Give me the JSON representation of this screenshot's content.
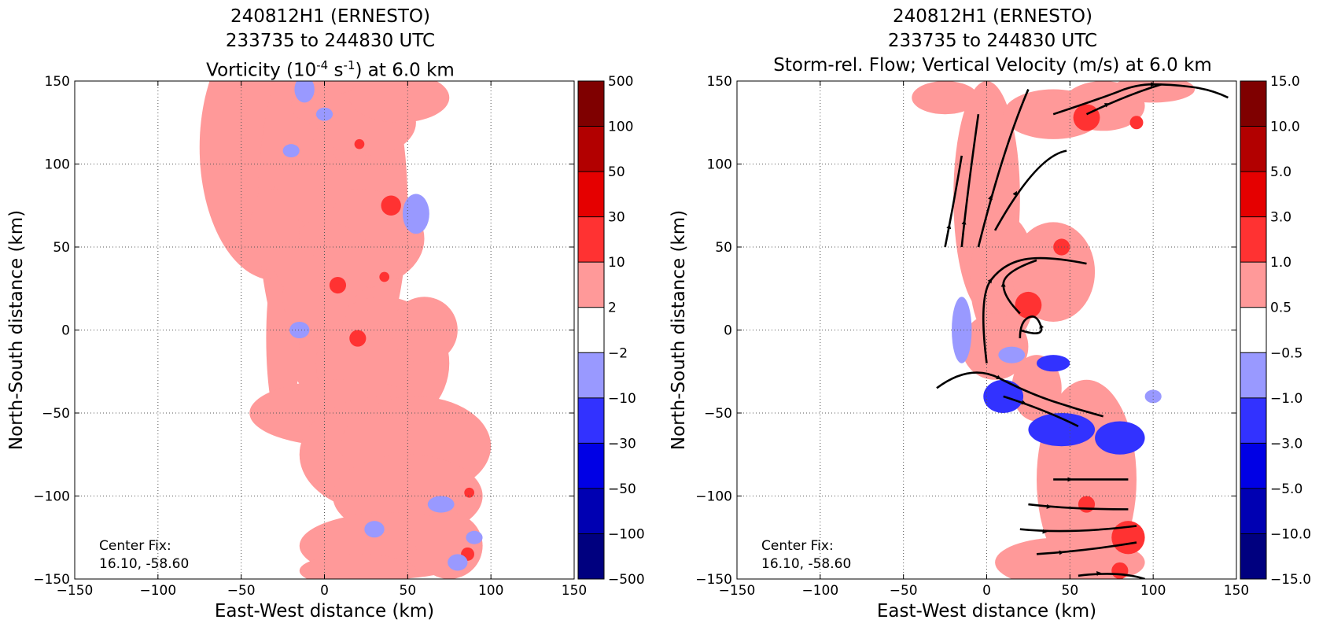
{
  "panels": [
    {
      "title_line1": "240812H1 (ERNESTO)",
      "title_line2": "233735 to 244830 UTC",
      "title_line3_pre": "Vorticity (10",
      "title_line3_sup1": "-4",
      "title_line3_mid": " s",
      "title_line3_sup2": "-1",
      "title_line3_post": ") at 6.0 km",
      "xlabel": "East-West distance (km)",
      "ylabel": "North-South distance (km)",
      "center_fix_label": "Center Fix:",
      "center_fix_value": "16.10, -58.60",
      "colorbar_ticks": [
        "−500",
        "−100",
        "−50",
        "−30",
        "−10",
        "−2",
        "2",
        "10",
        "30",
        "50",
        "100",
        "500"
      ]
    },
    {
      "title_line1": "240812H1 (ERNESTO)",
      "title_line2": "233735 to 244830 UTC",
      "title_line3": "Storm-rel. Flow; Vertical Velocity (m/s) at 6.0 km",
      "xlabel": "East-West distance (km)",
      "ylabel": "North-South distance (km)",
      "center_fix_label": "Center Fix:",
      "center_fix_value": "16.10, -58.60",
      "colorbar_ticks": [
        "−15.0",
        "−10.0",
        "−5.0",
        "−3.0",
        "−1.0",
        "−0.5",
        "0.5",
        "1.0",
        "3.0",
        "5.0",
        "10.0",
        "15.0"
      ]
    }
  ],
  "colorbar_colors": [
    "#00007f",
    "#0000b2",
    "#0000e5",
    "#3232ff",
    "#9999ff",
    "#ffffff",
    "#ff9999",
    "#ff3232",
    "#e50000",
    "#b20000",
    "#7f0000"
  ],
  "chart_data": [
    {
      "type": "heatmap",
      "variable": "vorticity",
      "x_ticks": [
        -150,
        -100,
        -50,
        0,
        50,
        100,
        150
      ],
      "y_ticks": [
        -150,
        -100,
        -50,
        0,
        50,
        100,
        150
      ],
      "xlim": [
        -150,
        150
      ],
      "ylim": [
        -150,
        150
      ],
      "grid": true,
      "levels": [
        -500,
        -100,
        -50,
        -30,
        -10,
        -2,
        2,
        10,
        30,
        50,
        100,
        500
      ],
      "center_fix": [
        16.1,
        -58.6
      ],
      "positive_patches": [
        [
          -30,
          110,
          45,
          80
        ],
        [
          5,
          75,
          45,
          120
        ],
        [
          20,
          55,
          40,
          30
        ],
        [
          -25,
          -5,
          10,
          55
        ],
        [
          35,
          -20,
          40,
          40
        ],
        [
          10,
          -50,
          55,
          20
        ],
        [
          35,
          -75,
          50,
          35
        ],
        [
          55,
          -70,
          45,
          30
        ],
        [
          50,
          -100,
          45,
          25
        ],
        [
          40,
          -130,
          55,
          20
        ],
        [
          20,
          -145,
          35,
          10
        ],
        [
          15,
          135,
          35,
          15
        ],
        [
          -10,
          90,
          20,
          25
        ],
        [
          25,
          125,
          30,
          20
        ],
        [
          0,
          40,
          30,
          25
        ],
        [
          60,
          0,
          20,
          20
        ],
        [
          -5,
          20,
          20,
          25
        ],
        [
          75,
          -130,
          20,
          20
        ],
        [
          45,
          140,
          30,
          15
        ],
        [
          -30,
          60,
          15,
          25
        ]
      ],
      "moderate_patches": [
        [
          40,
          75,
          6
        ],
        [
          8,
          27,
          5
        ],
        [
          20,
          -5,
          5
        ],
        [
          36,
          32,
          3
        ],
        [
          86,
          -135,
          4
        ],
        [
          87,
          -98,
          3
        ],
        [
          21,
          112,
          3
        ]
      ],
      "negative_patches": [
        [
          55,
          70,
          8,
          12
        ],
        [
          -12,
          145,
          6,
          8
        ],
        [
          0,
          130,
          5,
          4
        ],
        [
          30,
          -120,
          6,
          5
        ],
        [
          70,
          -105,
          8,
          5
        ],
        [
          80,
          -140,
          6,
          5
        ],
        [
          -15,
          0,
          6,
          5
        ],
        [
          -20,
          108,
          5,
          4
        ],
        [
          90,
          -125,
          5,
          4
        ]
      ]
    },
    {
      "type": "heatmap",
      "variable": "vertical velocity with storm-relative streamlines",
      "x_ticks": [
        -150,
        -100,
        -50,
        0,
        50,
        100,
        150
      ],
      "y_ticks": [
        -150,
        -100,
        -50,
        0,
        50,
        100,
        150
      ],
      "xlim": [
        -150,
        150
      ],
      "ylim": [
        -150,
        150
      ],
      "grid": true,
      "levels": [
        -15.0,
        -10.0,
        -5.0,
        -3.0,
        -1.0,
        -0.5,
        0.5,
        1.0,
        3.0,
        5.0,
        10.0,
        15.0
      ],
      "center_fix": [
        16.1,
        -58.6
      ],
      "positive_patches": [
        [
          0,
          80,
          20,
          70
        ],
        [
          40,
          130,
          30,
          15
        ],
        [
          70,
          135,
          25,
          15
        ],
        [
          10,
          30,
          20,
          40
        ],
        [
          40,
          35,
          25,
          30
        ],
        [
          60,
          -90,
          30,
          60
        ],
        [
          45,
          -140,
          40,
          15
        ],
        [
          5,
          -10,
          20,
          20
        ],
        [
          30,
          -35,
          15,
          20
        ],
        [
          -25,
          140,
          20,
          10
        ],
        [
          100,
          145,
          25,
          8
        ],
        [
          75,
          -140,
          20,
          10
        ]
      ],
      "moderate_patches": [
        [
          60,
          128,
          8
        ],
        [
          25,
          15,
          8
        ],
        [
          45,
          50,
          5
        ],
        [
          85,
          -125,
          10
        ],
        [
          60,
          -105,
          5
        ],
        [
          80,
          -145,
          5
        ],
        [
          90,
          125,
          4
        ]
      ],
      "negative_patches": [
        [
          -15,
          0,
          6,
          20
        ],
        [
          10,
          -40,
          12,
          10
        ],
        [
          45,
          -60,
          20,
          10
        ],
        [
          80,
          -65,
          15,
          10
        ],
        [
          40,
          -20,
          10,
          5
        ],
        [
          15,
          -15,
          8,
          5
        ],
        [
          100,
          -40,
          5,
          4
        ]
      ],
      "streamlines": [
        [
          [
            -25,
            50
          ],
          [
            -20,
            75
          ],
          [
            -15,
            105
          ]
        ],
        [
          [
            -15,
            50
          ],
          [
            -12,
            80
          ],
          [
            -5,
            130
          ]
        ],
        [
          [
            -5,
            50
          ],
          [
            10,
            110
          ],
          [
            25,
            145
          ]
        ],
        [
          [
            5,
            60
          ],
          [
            30,
            105
          ],
          [
            48,
            108
          ]
        ],
        [
          [
            -30,
            -35
          ],
          [
            -10,
            -20
          ],
          [
            25,
            -38
          ],
          [
            55,
            -48
          ],
          [
            70,
            -52
          ]
        ],
        [
          [
            10,
            -40
          ],
          [
            35,
            -48
          ],
          [
            55,
            -58
          ]
        ],
        [
          [
            0,
            -20
          ],
          [
            -5,
            20
          ],
          [
            10,
            40
          ],
          [
            35,
            45
          ],
          [
            60,
            40
          ]
        ],
        [
          [
            20,
            0
          ],
          [
            35,
            -5
          ],
          [
            30,
            10
          ],
          [
            20,
            5
          ],
          [
            20,
            -5
          ]
        ],
        [
          [
            20,
            10
          ],
          [
            10,
            20
          ],
          [
            10,
            35
          ],
          [
            30,
            42
          ]
        ],
        [
          [
            40,
            130
          ],
          [
            70,
            140
          ],
          [
            90,
            148
          ],
          [
            110,
            148
          ],
          [
            135,
            145
          ],
          [
            145,
            140
          ]
        ],
        [
          [
            60,
            130
          ],
          [
            85,
            142
          ],
          [
            105,
            148
          ]
        ],
        [
          [
            40,
            -90
          ],
          [
            60,
            -90
          ],
          [
            85,
            -90
          ]
        ],
        [
          [
            25,
            -105
          ],
          [
            50,
            -108
          ],
          [
            85,
            -108
          ]
        ],
        [
          [
            20,
            -120
          ],
          [
            50,
            -123
          ],
          [
            90,
            -118
          ]
        ],
        [
          [
            30,
            -135
          ],
          [
            60,
            -133
          ],
          [
            90,
            -128
          ]
        ],
        [
          [
            55,
            -148
          ],
          [
            80,
            -145
          ],
          [
            95,
            -150
          ]
        ]
      ]
    }
  ]
}
